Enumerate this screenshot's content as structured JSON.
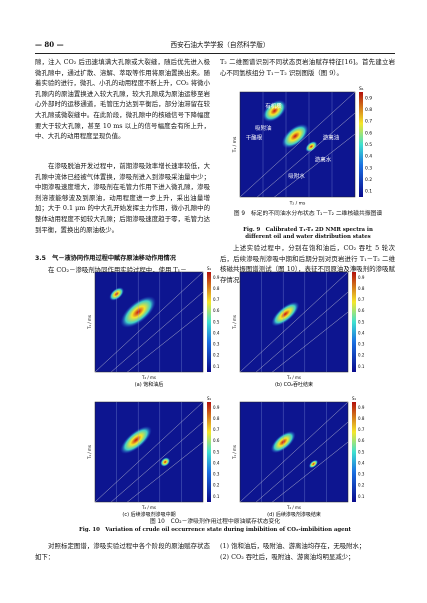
{
  "header": {
    "page_number": "— 80 —",
    "journal": "西安石油大学学报（自然科学版）"
  },
  "left_column": {
    "paragraphs": [
      "隙，注入 CO₂ 后迅速填满大孔隙或大裂缝，随后优先进入极微孔隙中，通过扩散、溶解、萃取等作用将原油置换出来。随着实验的进行，微孔、小孔的动用程度不断上升，CO₂ 将微小孔隙内的原油置换进入较大孔隙，较大孔隙成为原油运移至岩心外部时的运移通道，毛管压力达到平衡后，部分油滞留在较大孔隙或微裂缝中。在此阶段，微孔隙中的核磁信号下降幅度要大于较大孔隙，甚至 10 ms 以上的信号幅度会有所上升，中、大孔的动用程度呈现负值。",
      "在渗吸脱油开发过程中，前期渗吸效率增长速率较低，大孔隙中流体已经被气体置换，渗吸剂进入到渗吸采油量中少；中期渗吸速度增大，渗吸剂在毛管力作用下进入微孔隙，渗吸剂溶液能够波及到原油，动用程度进一步上升，采出油量增加；大于 0.1 μm 的中大孔开始发挥主力作用，微小孔隙中的整体动用程度不如较大孔隙；后期渗吸速度趋于零，毛管力达到平衡，置换出的原油极少。"
    ],
    "heading": "3.5　气－液协同作用过程中赋存原油移动作用情况",
    "paragraph_after": "在 CO₂－渗吸剂协同作用实验过程中，使用 T₁－"
  },
  "right_column": {
    "paragraph": "T₂ 二维图谱识别不同状态页岩油赋存特征[16]。首先建立岩心不同氢核组分 T₁－T₂ 识别图版（图 9）。",
    "paragraph2": "上述实验过程中，分别在饱和油后，CO₂ 吞吐 5 轮次后，后续渗吸剂渗吸中期和后期分别对页岩进行 T₁－T₂ 二维核磁共振图谱测试（图 10），表征不同原油及渗吸剂的渗吸赋存情况。"
  },
  "figure9": {
    "region_labels": [
      "有机质",
      "吸附油",
      "干酪根",
      "游离油",
      "游离水",
      "吸附水"
    ],
    "x_label": "T₂ / ms",
    "y_label": "T₁ / ms",
    "colorbar_label": "S₁",
    "colorbar_ticks": [
      0.9,
      0.8,
      0.7,
      0.6,
      0.5,
      0.4,
      0.3,
      0.2,
      0.1
    ],
    "caption_cn": "图 9　标定的不同油水分布状态 T₁－T₂ 二维核磁共振图谱",
    "caption_en": "Fig. 9　Calibrated T₁-T₂ 2D NMR spectra in different oil and water distribution states"
  },
  "figure10": {
    "panels": [
      "(a) 饱和油后",
      "(b) CO₂吞吐结束",
      "(c) 后续渗吸剂渗吸中期",
      "(d) 后续渗吸剂渗吸结束"
    ],
    "x_label": "T₂ / ms",
    "y_label": "T₁ / ms",
    "colorbar_label": "S₁",
    "colorbar_ticks": [
      0.9,
      0.8,
      0.7,
      0.6,
      0.5,
      0.4,
      0.3,
      0.2,
      0.1
    ],
    "caption_cn": "图 10　CO₂－渗吸剂作用过程中原油赋存状态变化",
    "caption_en": "Fig. 10　Variation of crude oil occurrence state during imbibition of CO₂-imbibition agent"
  },
  "bottom": {
    "left": "对照标定图谱，渗吸实验过程中各个阶段的原油赋存状态如下：",
    "right": [
      "(1) 饱和油后，吸附油、游离油均存在，无吸附水；",
      "(2) CO₂ 吞吐后，吸附油、游离油均明显减少；"
    ]
  }
}
